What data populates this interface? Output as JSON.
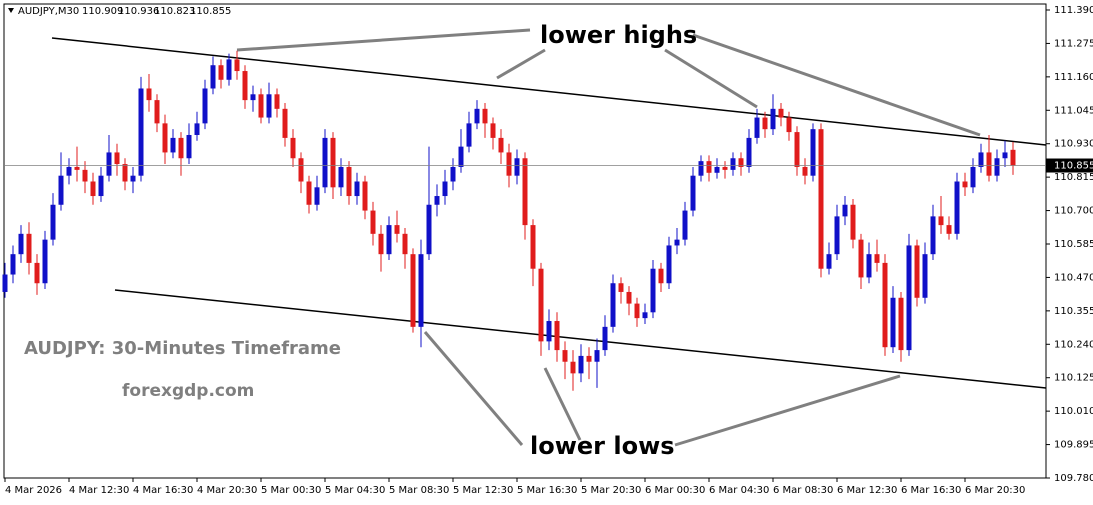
{
  "chart_data": {
    "type": "candlestick",
    "symbol": "AUDJPY,M30",
    "annotation_highs": "lower highs",
    "annotation_lows": "lower lows",
    "caption": "AUDJPY: 30-Minutes Timeframe",
    "watermark": "forexgdp.com",
    "up_color": "#1010c8",
    "down_color": "#e01c1c",
    "categories": [
      "4 Mar 2026",
      null,
      null,
      null,
      null,
      null,
      null,
      null,
      "4 Mar 12:30",
      null,
      null,
      null,
      null,
      null,
      null,
      null,
      "4 Mar 16:30",
      null,
      null,
      null,
      null,
      null,
      null,
      null,
      "4 Mar 20:30",
      null,
      null,
      null,
      null,
      null,
      null,
      null,
      "5 Mar 00:30",
      null,
      null,
      null,
      null,
      null,
      null,
      null,
      "5 Mar 04:30",
      null,
      null,
      null,
      null,
      null,
      null,
      null,
      "5 Mar 08:30",
      null,
      null,
      null,
      null,
      null,
      null,
      null,
      "5 Mar 12:30",
      null,
      null,
      null,
      null,
      null,
      null,
      null,
      "5 Mar 16:30",
      null,
      null,
      null,
      null,
      null,
      null,
      null,
      "5 Mar 20:30",
      null,
      null,
      null,
      null,
      null,
      null,
      null,
      "6 Mar 00:30",
      null,
      null,
      null,
      null,
      null,
      null,
      null,
      "6 Mar 04:30",
      null,
      null,
      null,
      null,
      null,
      null,
      null,
      "6 Mar 08:30",
      null,
      null,
      null,
      null,
      null,
      null,
      null,
      "6 Mar 12:30",
      null,
      null,
      null,
      null,
      null,
      null,
      null,
      "6 Mar 16:30",
      null,
      null,
      null,
      null,
      null,
      null,
      null,
      "6 Mar 20:30",
      null,
      null,
      null,
      null,
      null,
      null
    ],
    "open": [
      110.42,
      110.48,
      110.55,
      110.62,
      110.52,
      110.45,
      110.6,
      110.72,
      110.82,
      110.85,
      110.84,
      110.8,
      110.75,
      110.82,
      110.9,
      110.86,
      110.8,
      110.82,
      111.12,
      111.08,
      111.0,
      110.9,
      110.95,
      110.88,
      110.96,
      111.0,
      111.12,
      111.2,
      111.15,
      111.22,
      111.18,
      111.08,
      111.1,
      111.02,
      111.1,
      111.05,
      110.95,
      110.88,
      110.8,
      110.72,
      110.78,
      110.95,
      110.78,
      110.85,
      110.75,
      110.8,
      110.7,
      110.62,
      110.55,
      110.65,
      110.62,
      110.55,
      110.3,
      110.55,
      110.72,
      110.75,
      110.8,
      110.85,
      110.92,
      111.0,
      111.05,
      111.0,
      110.95,
      110.9,
      110.82,
      110.88,
      110.65,
      110.5,
      110.25,
      110.32,
      110.22,
      110.18,
      110.14,
      110.2,
      110.18,
      110.22,
      110.3,
      110.45,
      110.42,
      110.38,
      110.33,
      110.35,
      110.5,
      110.45,
      110.58,
      110.6,
      110.7,
      110.82,
      110.87,
      110.83,
      110.85,
      110.84,
      110.88,
      110.85,
      110.95,
      111.02,
      110.98,
      111.05,
      111.02,
      110.97,
      110.85,
      110.82,
      110.98,
      110.5,
      110.55,
      110.68,
      110.72,
      110.6,
      110.47,
      110.55,
      110.52,
      110.23,
      110.4,
      110.22,
      110.58,
      110.4,
      110.55,
      110.68,
      110.65,
      110.62,
      110.8,
      110.78,
      110.85,
      110.9,
      110.82,
      110.88,
      110.909
    ],
    "high": [
      110.52,
      110.58,
      110.65,
      110.66,
      110.55,
      110.63,
      110.76,
      110.9,
      110.88,
      110.92,
      110.87,
      110.83,
      110.85,
      110.96,
      110.93,
      110.88,
      110.85,
      111.16,
      111.17,
      111.1,
      111.03,
      110.98,
      110.97,
      111.0,
      111.04,
      111.15,
      111.23,
      111.22,
      111.24,
      111.25,
      111.2,
      111.13,
      111.12,
      111.14,
      111.12,
      111.07,
      110.98,
      110.9,
      110.82,
      110.82,
      110.98,
      110.97,
      110.88,
      110.87,
      110.83,
      110.82,
      110.73,
      110.65,
      110.68,
      110.7,
      110.64,
      110.57,
      110.6,
      110.92,
      110.79,
      110.84,
      110.88,
      110.98,
      111.04,
      111.08,
      111.07,
      111.02,
      110.98,
      110.93,
      110.91,
      110.9,
      110.67,
      110.52,
      110.36,
      110.35,
      110.25,
      110.22,
      110.24,
      110.23,
      110.26,
      110.34,
      110.48,
      110.47,
      110.44,
      110.4,
      110.38,
      110.53,
      110.52,
      110.61,
      110.64,
      110.73,
      110.85,
      110.89,
      110.89,
      110.88,
      110.87,
      110.9,
      110.9,
      110.98,
      111.05,
      111.04,
      111.1,
      111.07,
      111.04,
      110.99,
      110.88,
      111.0,
      111.0,
      110.59,
      110.72,
      110.75,
      110.74,
      110.62,
      110.59,
      110.6,
      110.55,
      110.44,
      110.42,
      110.62,
      110.6,
      110.59,
      110.72,
      110.75,
      110.68,
      110.83,
      110.83,
      110.88,
      110.93,
      110.96,
      110.91,
      110.94,
      110.936
    ],
    "low": [
      110.4,
      110.45,
      110.52,
      110.48,
      110.41,
      110.43,
      110.58,
      110.7,
      110.79,
      110.8,
      110.76,
      110.72,
      110.73,
      110.8,
      110.82,
      110.77,
      110.76,
      110.8,
      111.04,
      110.97,
      110.86,
      110.88,
      110.82,
      110.86,
      110.94,
      110.98,
      111.1,
      111.12,
      111.13,
      111.15,
      111.05,
      111.04,
      111.0,
      111.0,
      111.02,
      110.92,
      110.85,
      110.76,
      110.69,
      110.7,
      110.76,
      110.74,
      110.75,
      110.72,
      110.72,
      110.67,
      110.58,
      110.49,
      110.53,
      110.59,
      110.5,
      110.28,
      110.23,
      110.53,
      110.68,
      110.72,
      110.77,
      110.83,
      110.9,
      110.98,
      110.95,
      110.91,
      110.86,
      110.78,
      110.79,
      110.6,
      110.44,
      110.2,
      110.22,
      110.18,
      110.12,
      110.08,
      110.11,
      110.12,
      110.09,
      110.2,
      110.28,
      110.38,
      110.34,
      110.3,
      110.31,
      110.33,
      110.42,
      110.43,
      110.55,
      110.58,
      110.68,
      110.8,
      110.8,
      110.81,
      110.81,
      110.82,
      110.82,
      110.83,
      110.93,
      110.95,
      110.96,
      110.99,
      110.94,
      110.82,
      110.79,
      110.8,
      110.47,
      110.48,
      110.53,
      110.65,
      110.57,
      110.43,
      110.45,
      110.49,
      110.2,
      110.21,
      110.18,
      110.2,
      110.37,
      110.38,
      110.53,
      110.62,
      110.6,
      110.6,
      110.75,
      110.76,
      110.83,
      110.8,
      110.8,
      110.85,
      110.823
    ],
    "close": [
      110.48,
      110.55,
      110.62,
      110.52,
      110.45,
      110.6,
      110.72,
      110.82,
      110.85,
      110.84,
      110.8,
      110.75,
      110.82,
      110.9,
      110.86,
      110.8,
      110.82,
      111.12,
      111.08,
      111.0,
      110.9,
      110.95,
      110.88,
      110.96,
      111.0,
      111.12,
      111.2,
      111.15,
      111.22,
      111.18,
      111.08,
      111.1,
      111.02,
      111.1,
      111.05,
      110.95,
      110.88,
      110.8,
      110.72,
      110.78,
      110.95,
      110.78,
      110.85,
      110.75,
      110.8,
      110.7,
      110.62,
      110.55,
      110.65,
      110.62,
      110.55,
      110.3,
      110.55,
      110.72,
      110.75,
      110.8,
      110.85,
      110.92,
      111.0,
      111.05,
      111.0,
      110.95,
      110.9,
      110.82,
      110.88,
      110.65,
      110.5,
      110.25,
      110.32,
      110.22,
      110.18,
      110.14,
      110.2,
      110.18,
      110.22,
      110.3,
      110.45,
      110.42,
      110.38,
      110.33,
      110.35,
      110.5,
      110.45,
      110.58,
      110.6,
      110.7,
      110.82,
      110.87,
      110.83,
      110.85,
      110.84,
      110.88,
      110.85,
      110.95,
      111.02,
      110.98,
      111.05,
      111.02,
      110.97,
      110.85,
      110.82,
      110.98,
      110.5,
      110.55,
      110.68,
      110.72,
      110.6,
      110.47,
      110.55,
      110.52,
      110.23,
      110.4,
      110.22,
      110.58,
      110.4,
      110.55,
      110.68,
      110.65,
      110.62,
      110.8,
      110.78,
      110.85,
      110.9,
      110.82,
      110.88,
      110.9,
      110.855
    ],
    "ylim": [
      109.78,
      111.39
    ],
    "yticks": [
      {
        "value": 111.39,
        "label": "111.390"
      },
      111.275,
      {
        "value": 111.16,
        "label": "111.160"
      },
      111.045,
      {
        "value": 110.93,
        "label": "110.930"
      },
      110.815,
      {
        "value": 110.7,
        "label": "110.700"
      },
      110.585,
      {
        "value": 110.47,
        "label": "110.470"
      },
      110.355,
      {
        "value": 110.24,
        "label": "110.240"
      },
      110.125,
      {
        "value": 110.01,
        "label": "110.010"
      },
      109.895,
      {
        "value": 109.78,
        "label": "109.780"
      }
    ]
  }
}
